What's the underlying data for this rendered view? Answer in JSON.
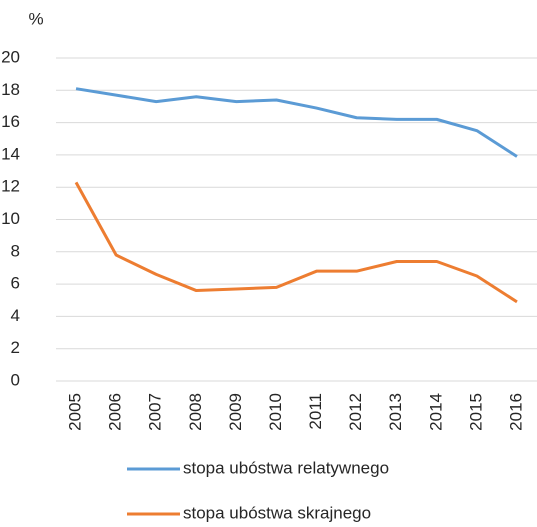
{
  "chart_data": {
    "type": "line",
    "y_label": "%",
    "categories": [
      "2005",
      "2006",
      "2007",
      "2008",
      "2009",
      "2010",
      "2011",
      "2012",
      "2013",
      "2014",
      "2015",
      "2016"
    ],
    "series": [
      {
        "name": "stopa ubóstwa relatywnego",
        "color": "#5b9bd5",
        "values": [
          18.1,
          17.7,
          17.3,
          17.6,
          17.3,
          17.4,
          16.9,
          16.3,
          16.2,
          16.2,
          15.5,
          13.9
        ]
      },
      {
        "name": "stopa ubóstwa skrajnego",
        "color": "#ed7d31",
        "values": [
          12.3,
          7.8,
          6.6,
          5.6,
          5.7,
          5.8,
          6.8,
          6.8,
          7.4,
          7.4,
          6.5,
          4.9
        ]
      }
    ],
    "ylim": [
      0,
      20
    ],
    "yticks": [
      0,
      2,
      4,
      6,
      8,
      10,
      12,
      14,
      16,
      18,
      20
    ],
    "grid": true
  }
}
